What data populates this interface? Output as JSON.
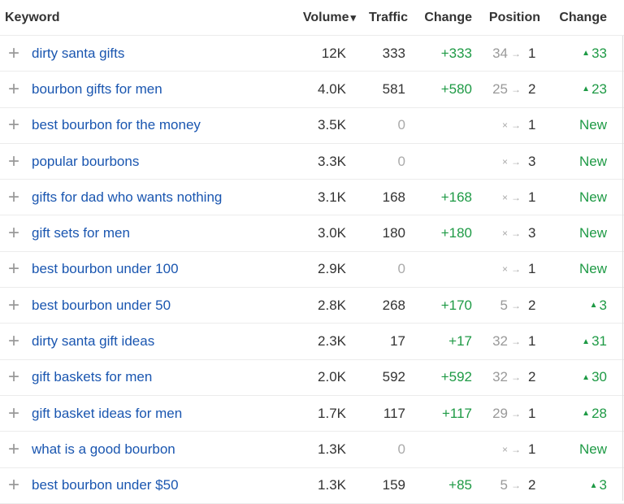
{
  "headers": {
    "keyword": "Keyword",
    "volume": "Volume",
    "sort_icon": "▾",
    "traffic": "Traffic",
    "change": "Change",
    "position": "Position",
    "pos_change": "Change"
  },
  "rows": [
    {
      "keyword": "dirty santa gifts",
      "volume": "12K",
      "traffic": "333",
      "change": "+333",
      "pos_old": "34",
      "pos_new": "1",
      "pos_change": "33",
      "new": false
    },
    {
      "keyword": "bourbon gifts for men",
      "volume": "4.0K",
      "traffic": "581",
      "change": "+580",
      "pos_old": "25",
      "pos_new": "2",
      "pos_change": "23",
      "new": false
    },
    {
      "keyword": "best bourbon for the money",
      "volume": "3.5K",
      "traffic": "0",
      "change": "",
      "pos_old": "×",
      "pos_new": "1",
      "pos_change": "New",
      "new": true
    },
    {
      "keyword": "popular bourbons",
      "volume": "3.3K",
      "traffic": "0",
      "change": "",
      "pos_old": "×",
      "pos_new": "3",
      "pos_change": "New",
      "new": true
    },
    {
      "keyword": "gifts for dad who wants nothing",
      "volume": "3.1K",
      "traffic": "168",
      "change": "+168",
      "pos_old": "×",
      "pos_new": "1",
      "pos_change": "New",
      "new": true
    },
    {
      "keyword": "gift sets for men",
      "volume": "3.0K",
      "traffic": "180",
      "change": "+180",
      "pos_old": "×",
      "pos_new": "3",
      "pos_change": "New",
      "new": true
    },
    {
      "keyword": "best bourbon under 100",
      "volume": "2.9K",
      "traffic": "0",
      "change": "",
      "pos_old": "×",
      "pos_new": "1",
      "pos_change": "New",
      "new": true
    },
    {
      "keyword": "best bourbon under 50",
      "volume": "2.8K",
      "traffic": "268",
      "change": "+170",
      "pos_old": "5",
      "pos_new": "2",
      "pos_change": "3",
      "new": false
    },
    {
      "keyword": "dirty santa gift ideas",
      "volume": "2.3K",
      "traffic": "17",
      "change": "+17",
      "pos_old": "32",
      "pos_new": "1",
      "pos_change": "31",
      "new": false
    },
    {
      "keyword": "gift baskets for men",
      "volume": "2.0K",
      "traffic": "592",
      "change": "+592",
      "pos_old": "32",
      "pos_new": "2",
      "pos_change": "30",
      "new": false
    },
    {
      "keyword": "gift basket ideas for men",
      "volume": "1.7K",
      "traffic": "117",
      "change": "+117",
      "pos_old": "29",
      "pos_new": "1",
      "pos_change": "28",
      "new": false
    },
    {
      "keyword": "what is a good bourbon",
      "volume": "1.3K",
      "traffic": "0",
      "change": "",
      "pos_old": "×",
      "pos_new": "1",
      "pos_change": "New",
      "new": true
    },
    {
      "keyword": "best bourbon under $50",
      "volume": "1.3K",
      "traffic": "159",
      "change": "+85",
      "pos_old": "5",
      "pos_new": "2",
      "pos_change": "3",
      "new": false
    }
  ]
}
